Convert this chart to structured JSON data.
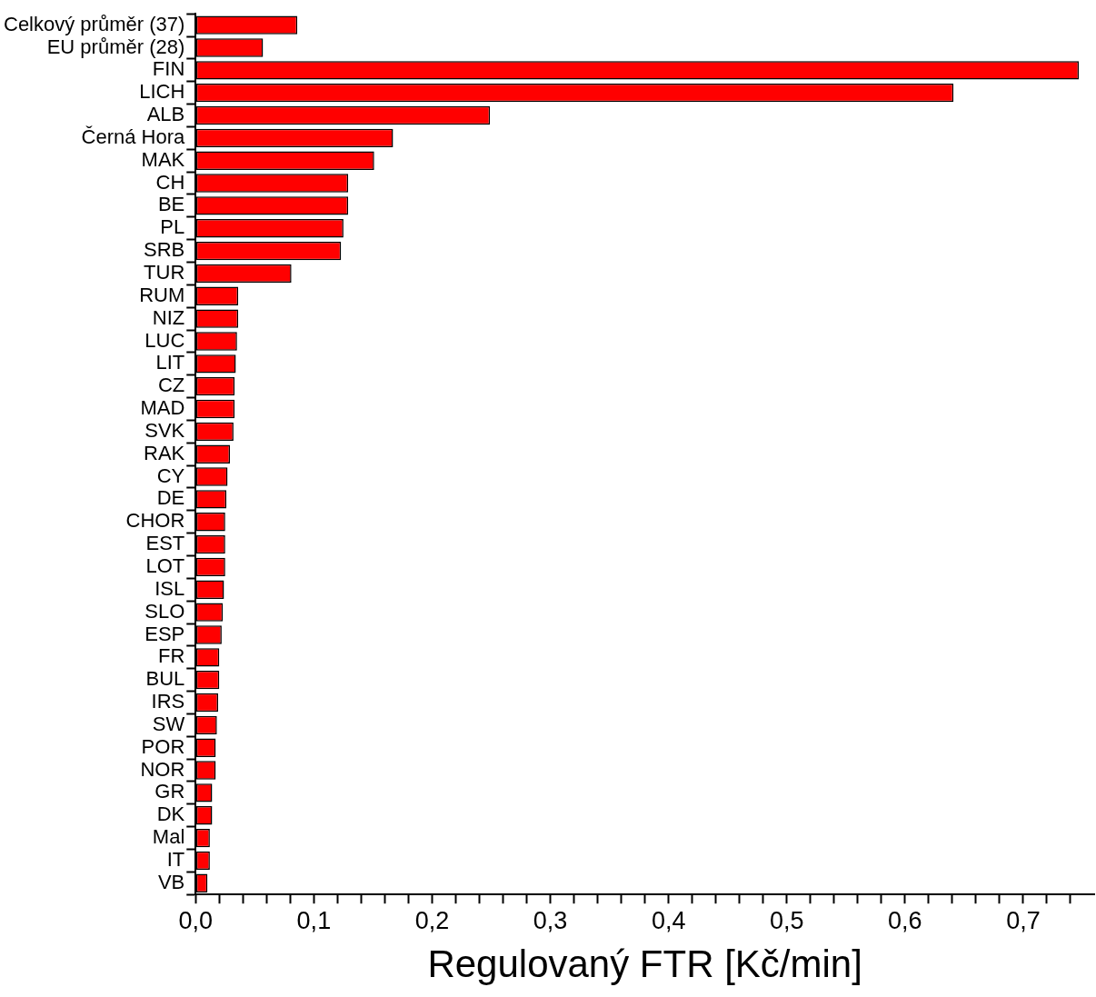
{
  "chart_data": {
    "type": "bar",
    "orientation": "horizontal",
    "xlabel": "Regulovaný FTR [Kč/min]",
    "categories": [
      "Celkový průměr (37)",
      "EU průměr (28)",
      "FIN",
      "LICH",
      "ALB",
      "Černá Hora",
      "MAK",
      "CH",
      "BE",
      "PL",
      "SRB",
      "TUR",
      "RUM",
      "NIZ",
      "LUC",
      "LIT",
      "CZ",
      "MAD",
      "SVK",
      "RAK",
      "CY",
      "DE",
      "CHOR",
      "EST",
      "LOT",
      "ISL",
      "SLO",
      "ESP",
      "FR",
      "BUL",
      "IRS",
      "SW",
      "POR",
      "NOR",
      "GR",
      "DK",
      "Mal",
      "IT",
      "VB"
    ],
    "values": [
      0.086,
      0.057,
      0.747,
      0.641,
      0.249,
      0.167,
      0.151,
      0.129,
      0.129,
      0.125,
      0.123,
      0.081,
      0.036,
      0.036,
      0.035,
      0.034,
      0.033,
      0.033,
      0.032,
      0.029,
      0.027,
      0.026,
      0.025,
      0.025,
      0.025,
      0.024,
      0.023,
      0.022,
      0.02,
      0.02,
      0.019,
      0.018,
      0.017,
      0.017,
      0.014,
      0.014,
      0.012,
      0.012,
      0.01
    ],
    "color": "#ff0000",
    "xlim": [
      0,
      0.76
    ],
    "xticks": [
      {
        "value": 0,
        "label": "0,0"
      },
      {
        "value": 0.02,
        "label": null
      },
      {
        "value": 0.04,
        "label": null
      },
      {
        "value": 0.06,
        "label": null
      },
      {
        "value": 0.08,
        "label": null
      },
      {
        "value": 0.1,
        "label": "0,1"
      },
      {
        "value": 0.12,
        "label": null
      },
      {
        "value": 0.14,
        "label": null
      },
      {
        "value": 0.16,
        "label": null
      },
      {
        "value": 0.18,
        "label": null
      },
      {
        "value": 0.2,
        "label": "0,2"
      },
      {
        "value": 0.22,
        "label": null
      },
      {
        "value": 0.24,
        "label": null
      },
      {
        "value": 0.26,
        "label": null
      },
      {
        "value": 0.28,
        "label": null
      },
      {
        "value": 0.3,
        "label": "0,3"
      },
      {
        "value": 0.32,
        "label": null
      },
      {
        "value": 0.34,
        "label": null
      },
      {
        "value": 0.36,
        "label": null
      },
      {
        "value": 0.38,
        "label": null
      },
      {
        "value": 0.4,
        "label": "0,4"
      },
      {
        "value": 0.42,
        "label": null
      },
      {
        "value": 0.44,
        "label": null
      },
      {
        "value": 0.46,
        "label": null
      },
      {
        "value": 0.48,
        "label": null
      },
      {
        "value": 0.5,
        "label": "0,5"
      },
      {
        "value": 0.52,
        "label": null
      },
      {
        "value": 0.54,
        "label": null
      },
      {
        "value": 0.56,
        "label": null
      },
      {
        "value": 0.58,
        "label": null
      },
      {
        "value": 0.6,
        "label": "0,6"
      },
      {
        "value": 0.62,
        "label": null
      },
      {
        "value": 0.64,
        "label": null
      },
      {
        "value": 0.66,
        "label": null
      },
      {
        "value": 0.68,
        "label": null
      },
      {
        "value": 0.7,
        "label": "0,7"
      },
      {
        "value": 0.72,
        "label": null
      },
      {
        "value": 0.74,
        "label": null
      }
    ],
    "grid": false,
    "legend": false
  }
}
